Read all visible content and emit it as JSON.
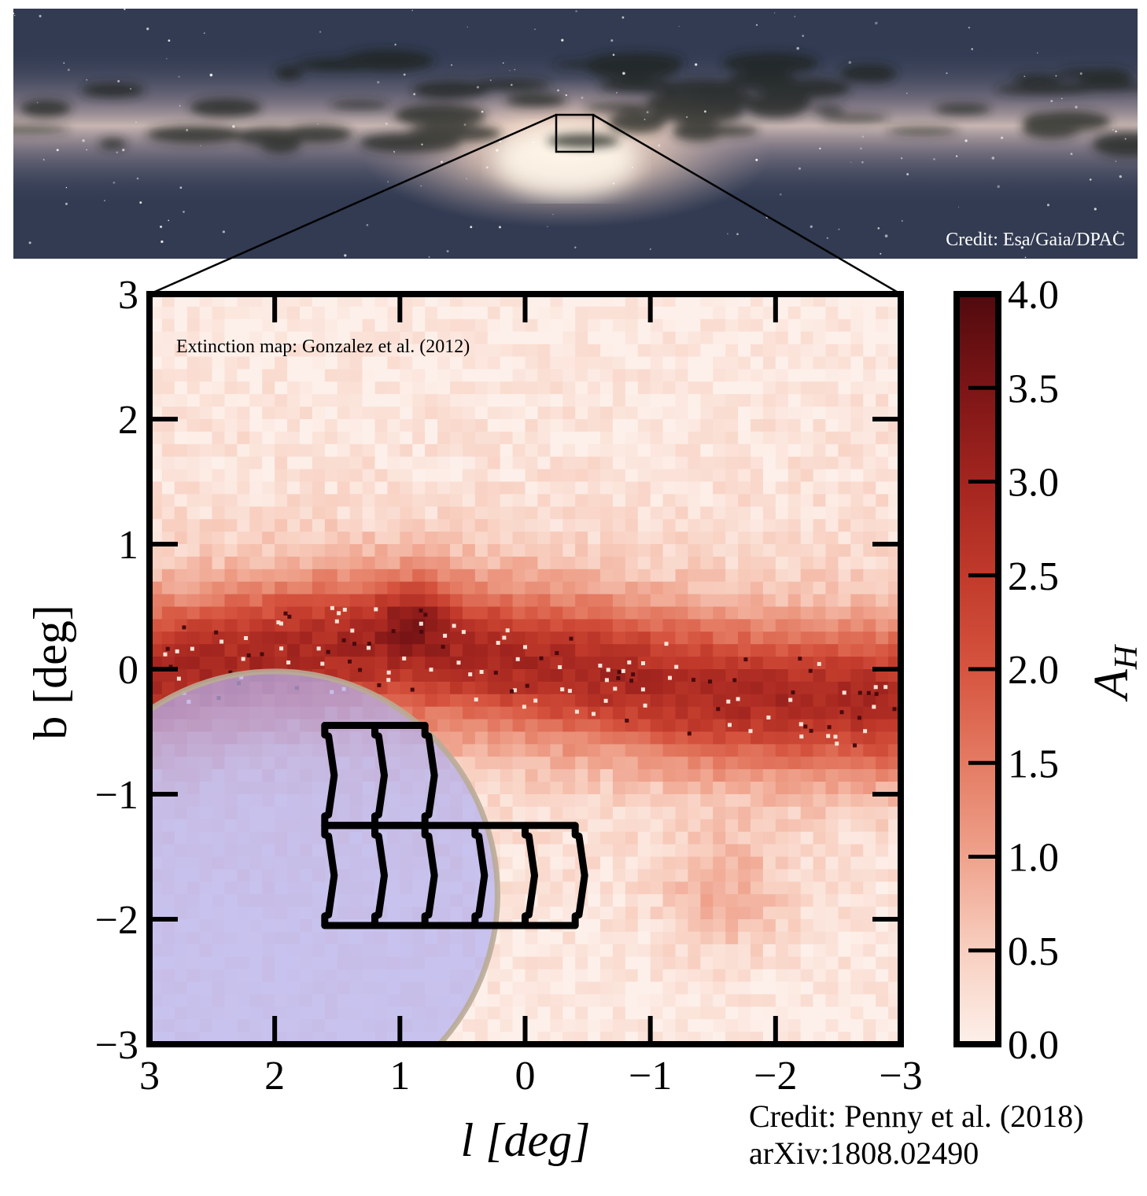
{
  "milky_way": {
    "credit": "Credit: Esa/Gaia/DPAC",
    "colors": {
      "sky": "#2b3448",
      "band": "#c9b9b2",
      "bulge": "#fff0dc",
      "dust": "#1b1c18"
    }
  },
  "chart_data": {
    "type": "heatmap",
    "title": "",
    "annotation": "Extinction map: Gonzalez et al. (2012)",
    "xlabel": "l [deg]",
    "ylabel": "b [deg]",
    "xlim": [
      3,
      -3
    ],
    "ylim": [
      -3,
      3
    ],
    "xticks": [
      3,
      2,
      1,
      0,
      -1,
      -2,
      -3
    ],
    "yticks": [
      3,
      2,
      1,
      0,
      -1,
      -2,
      -3
    ],
    "tick_labels": {
      "x": [
        "3",
        "2",
        "1",
        "0",
        "−1",
        "−2",
        "−3"
      ],
      "y": [
        "3",
        "2",
        "1",
        "0",
        "−1",
        "−2",
        "−3"
      ]
    },
    "colorbar": {
      "label": "A_H",
      "label_main": "A",
      "label_sub": "H",
      "range": [
        0,
        4
      ],
      "ticks": [
        0.0,
        0.5,
        1.0,
        1.5,
        2.0,
        2.5,
        3.0,
        3.5,
        4.0
      ],
      "tick_labels": [
        "0.0",
        "0.5",
        "1.0",
        "1.5",
        "2.0",
        "2.5",
        "3.0",
        "3.5",
        "4.0"
      ],
      "colors": [
        "#fdf0ea",
        "#f8cfc0",
        "#efa28c",
        "#e47b63",
        "#d6543f",
        "#c13a2b",
        "#a3251f",
        "#7c1516",
        "#500a0e"
      ]
    },
    "survey_circle": {
      "center_l": 2.0,
      "center_b": -1.8,
      "radius_deg": 1.78,
      "fill": "#b3b1f0",
      "edge": "#b9ab96"
    },
    "footprint": {
      "top_row": {
        "b_range": [
          -1.25,
          -0.45
        ],
        "l_edges": [
          1.6,
          1.2,
          0.8
        ]
      },
      "bottom_row": {
        "b_range": [
          -2.05,
          -1.25
        ],
        "l_edges": [
          1.6,
          1.2,
          0.8,
          0.4,
          0.0,
          -0.4
        ]
      }
    },
    "credit_lines": [
      "Credit: Penny et al. (2018)",
      "arXiv:1808.02490"
    ]
  }
}
